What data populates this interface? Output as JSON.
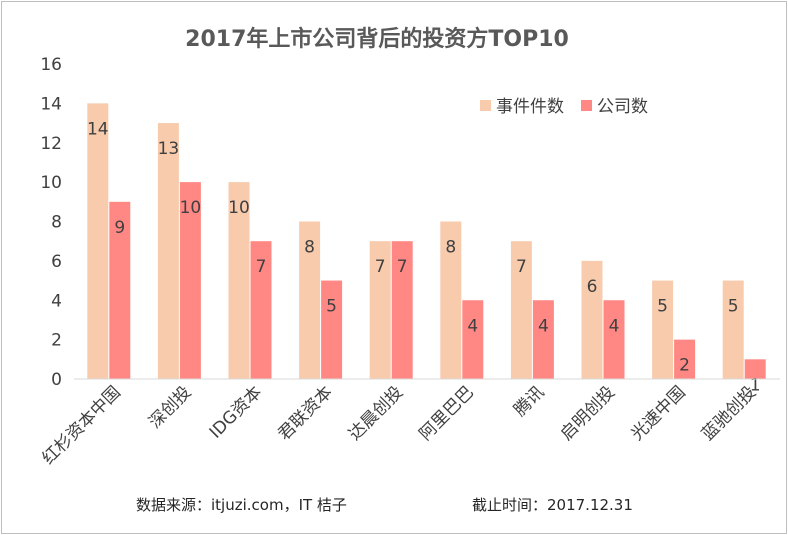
{
  "chart_data": {
    "type": "bar",
    "title": "2017年上市公司背后的投资方TOP10",
    "categories": [
      "红杉资本中国",
      "深创投",
      "IDG资本",
      "君联资本",
      "达晨创投",
      "阿里巴巴",
      "腾讯",
      "启明创投",
      "光速中国",
      "蓝驰创投"
    ],
    "series": [
      {
        "name": "事件件数",
        "values": [
          14,
          13,
          10,
          8,
          7,
          8,
          7,
          6,
          5,
          5
        ],
        "color": "#f8cbad"
      },
      {
        "name": "公司数",
        "values": [
          9,
          10,
          7,
          5,
          7,
          4,
          4,
          4,
          2,
          1
        ],
        "color": "#ff8885"
      }
    ],
    "ylim": [
      0,
      16
    ],
    "yticks": [
      0,
      2,
      4,
      6,
      8,
      10,
      12,
      14,
      16
    ],
    "grid": false,
    "legend_position": "top-right",
    "xlabel": "",
    "ylabel": ""
  },
  "footer": {
    "source": "数据来源：itjuzi.com，IT 桔子",
    "cutoff": "截止时间：2017.12.31"
  }
}
